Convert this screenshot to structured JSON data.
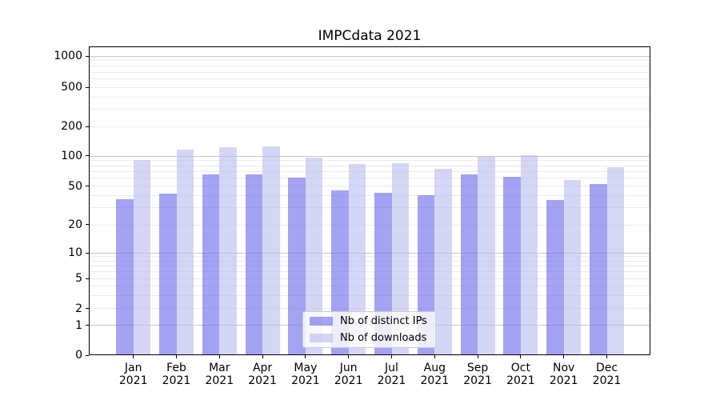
{
  "title": "IMPCdata 2021",
  "year_label": "2021",
  "chart_data": {
    "type": "bar",
    "title": "IMPCdata 2021",
    "categories": [
      "Jan",
      "Feb",
      "Mar",
      "Apr",
      "May",
      "Jun",
      "Jul",
      "Aug",
      "Sep",
      "Oct",
      "Nov",
      "Dec"
    ],
    "category_year": "2021",
    "series": [
      {
        "name": "Nb of distinct IPs",
        "color": "rgba(113,113,234,0.65)",
        "values": [
          37,
          42,
          66,
          66,
          61,
          45,
          43,
          40,
          65,
          62,
          36,
          53
        ]
      },
      {
        "name": "Nb of downloads",
        "color": "rgba(190,190,240,0.65)",
        "values": [
          91,
          116,
          123,
          126,
          97,
          83,
          84,
          74,
          98,
          102,
          58,
          77
        ]
      }
    ],
    "xlabel": "",
    "ylabel": "",
    "yscale": "symlog",
    "ylim": [
      0,
      1280
    ],
    "yticks": [
      0,
      1,
      2,
      5,
      10,
      20,
      50,
      100,
      200,
      500,
      1000
    ],
    "grid_major_values": [
      1,
      10,
      100,
      1000
    ],
    "grid_minor_values": [
      2,
      3,
      4,
      5,
      6,
      7,
      8,
      9,
      20,
      30,
      40,
      50,
      60,
      70,
      80,
      90,
      200,
      300,
      400,
      500,
      600,
      700,
      800,
      900
    ],
    "y_scale_anchors": [
      [
        0,
        0
      ],
      [
        1,
        0.0966
      ],
      [
        2,
        0.1503
      ],
      [
        5,
        0.2487
      ],
      [
        10,
        0.3316
      ],
      [
        20,
        0.4223
      ],
      [
        50,
        0.5474
      ],
      [
        100,
        0.6451
      ],
      [
        200,
        0.7401
      ],
      [
        500,
        0.8671
      ],
      [
        1000,
        0.9689
      ]
    ],
    "legend_position": "lower center",
    "grid": true,
    "colors": {
      "grid_major": "#c6c6c6",
      "grid_minor": "#ebebeb",
      "axis": "#000000"
    }
  }
}
